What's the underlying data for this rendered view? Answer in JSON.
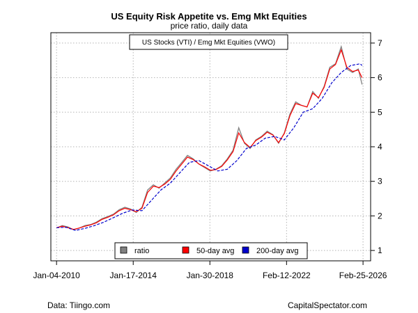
{
  "chart_data": {
    "type": "line",
    "title": "US Equity Risk Appetite vs. Emg Mkt Equities",
    "subtitle": "price ratio, daily data",
    "inset_label": "US Stocks (VTI) / Emg Mkt Equities (VWO)",
    "x_tick_labels": [
      "Jan-04-2010",
      "Jan-17-2014",
      "Jan-30-2018",
      "Feb-12-2022",
      "Feb-25-2026"
    ],
    "y_ticks": [
      1,
      2,
      3,
      4,
      5,
      6,
      7
    ],
    "ylim": [
      0.7,
      7.3
    ],
    "xlim": [
      2009.7,
      2026.55
    ],
    "y_axis_side": "right",
    "grid": true,
    "legend_placement": "bottom-center",
    "series": [
      {
        "name": "ratio",
        "color": "#808080",
        "style": "solid",
        "x": [
          2010.0,
          2010.3,
          2010.6,
          2010.9,
          2011.2,
          2011.5,
          2011.8,
          2012.1,
          2012.4,
          2012.7,
          2013.0,
          2013.3,
          2013.6,
          2013.9,
          2014.2,
          2014.5,
          2014.8,
          2015.1,
          2015.4,
          2015.7,
          2016.0,
          2016.3,
          2016.6,
          2016.9,
          2017.2,
          2017.5,
          2017.8,
          2018.1,
          2018.4,
          2018.7,
          2019.0,
          2019.3,
          2019.6,
          2019.9,
          2020.2,
          2020.5,
          2020.8,
          2021.1,
          2021.4,
          2021.7,
          2022.0,
          2022.3,
          2022.6,
          2022.9,
          2023.2,
          2023.5,
          2023.8,
          2024.1,
          2024.4,
          2024.7,
          2025.0,
          2025.3,
          2025.6,
          2025.9,
          2026.1
        ],
        "values": [
          1.65,
          1.72,
          1.68,
          1.6,
          1.65,
          1.72,
          1.75,
          1.82,
          1.92,
          1.98,
          2.05,
          2.18,
          2.25,
          2.2,
          2.1,
          2.25,
          2.75,
          2.9,
          2.8,
          2.95,
          3.1,
          3.35,
          3.55,
          3.75,
          3.65,
          3.5,
          3.4,
          3.3,
          3.35,
          3.45,
          3.65,
          3.9,
          4.55,
          4.1,
          3.95,
          4.2,
          4.3,
          4.45,
          4.35,
          4.1,
          4.4,
          4.95,
          5.3,
          5.2,
          5.15,
          5.6,
          5.4,
          5.75,
          6.3,
          6.4,
          6.9,
          6.25,
          6.15,
          6.25,
          5.8
        ]
      },
      {
        "name": "50-day avg",
        "color": "#ff0000",
        "style": "solid",
        "x": [
          2010.0,
          2010.3,
          2010.6,
          2010.9,
          2011.2,
          2011.5,
          2011.8,
          2012.1,
          2012.4,
          2012.7,
          2013.0,
          2013.3,
          2013.6,
          2013.9,
          2014.2,
          2014.5,
          2014.8,
          2015.1,
          2015.4,
          2015.7,
          2016.0,
          2016.3,
          2016.6,
          2016.9,
          2017.2,
          2017.5,
          2017.8,
          2018.1,
          2018.4,
          2018.7,
          2019.0,
          2019.3,
          2019.6,
          2019.9,
          2020.2,
          2020.5,
          2020.8,
          2021.1,
          2021.4,
          2021.7,
          2022.0,
          2022.3,
          2022.6,
          2022.9,
          2023.2,
          2023.5,
          2023.8,
          2024.1,
          2024.4,
          2024.7,
          2025.0,
          2025.3,
          2025.6,
          2025.9,
          2026.1
        ],
        "values": [
          1.66,
          1.7,
          1.66,
          1.61,
          1.65,
          1.7,
          1.74,
          1.8,
          1.9,
          1.96,
          2.03,
          2.15,
          2.22,
          2.18,
          2.12,
          2.22,
          2.68,
          2.86,
          2.82,
          2.92,
          3.06,
          3.3,
          3.5,
          3.7,
          3.63,
          3.5,
          3.42,
          3.32,
          3.34,
          3.43,
          3.62,
          3.86,
          4.4,
          4.12,
          3.98,
          4.18,
          4.28,
          4.42,
          4.34,
          4.12,
          4.38,
          4.9,
          5.25,
          5.2,
          5.15,
          5.55,
          5.42,
          5.72,
          6.25,
          6.38,
          6.8,
          6.3,
          6.18,
          6.22,
          6.0
        ]
      },
      {
        "name": "200-day avg",
        "color": "#0000cc",
        "style": "dashed",
        "x": [
          2010.0,
          2010.5,
          2011.0,
          2011.5,
          2012.0,
          2012.5,
          2013.0,
          2013.5,
          2014.0,
          2014.5,
          2015.0,
          2015.5,
          2016.0,
          2016.5,
          2017.0,
          2017.5,
          2018.0,
          2018.5,
          2019.0,
          2019.5,
          2020.0,
          2020.5,
          2021.0,
          2021.5,
          2022.0,
          2022.5,
          2023.0,
          2023.5,
          2024.0,
          2024.5,
          2025.0,
          2025.5,
          2026.0,
          2026.1
        ],
        "values": [
          1.66,
          1.67,
          1.58,
          1.64,
          1.72,
          1.82,
          1.95,
          2.08,
          2.17,
          2.15,
          2.45,
          2.75,
          2.95,
          3.25,
          3.55,
          3.6,
          3.45,
          3.3,
          3.35,
          3.6,
          3.95,
          4.05,
          4.25,
          4.3,
          4.2,
          4.55,
          5.0,
          5.1,
          5.4,
          5.85,
          6.15,
          6.35,
          6.4,
          6.35
        ]
      }
    ]
  },
  "footer": {
    "left": "Data: Tiingo.com",
    "right": "CapitalSpectator.com"
  }
}
